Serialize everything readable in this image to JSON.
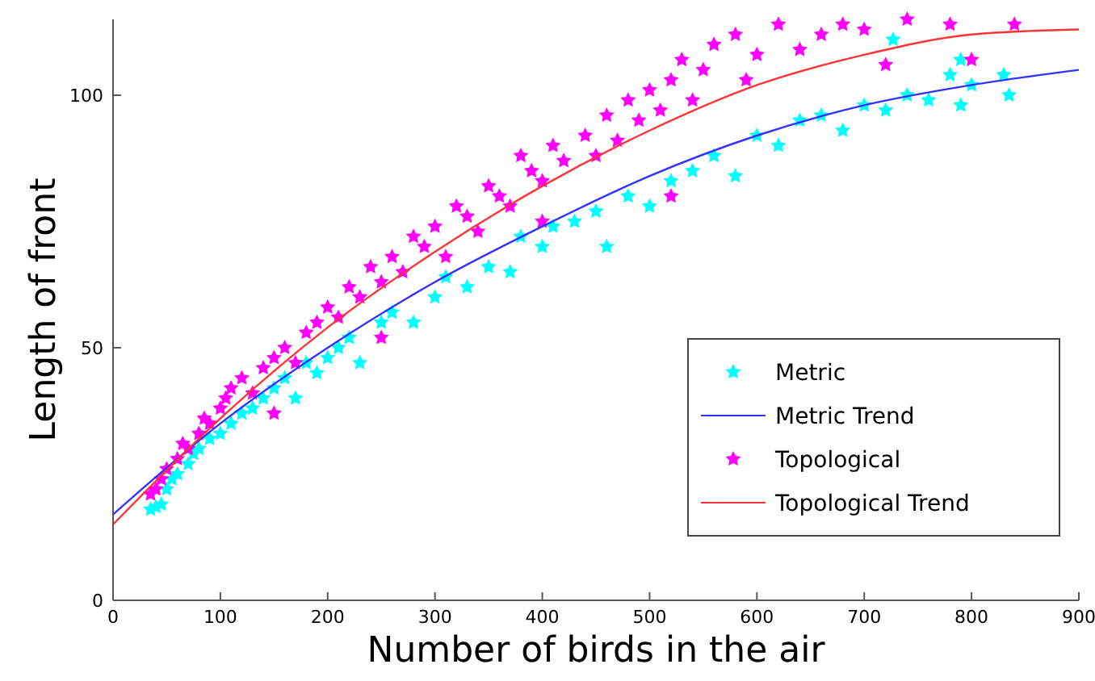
{
  "chart_data": {
    "type": "scatter",
    "xlabel": "Number of birds in the air",
    "ylabel": "Length of front",
    "xlim": [
      0,
      900
    ],
    "ylim": [
      0,
      115
    ],
    "xticks": [
      0,
      100,
      200,
      300,
      400,
      500,
      600,
      700,
      800,
      900
    ],
    "yticks": [
      0,
      50,
      100
    ],
    "grid": false,
    "legend": "bottom right",
    "series": [
      {
        "name": "Metric",
        "marker": "star",
        "color": "#00ffff",
        "x": [
          35,
          40,
          45,
          50,
          55,
          60,
          70,
          75,
          80,
          90,
          100,
          110,
          120,
          130,
          140,
          150,
          160,
          170,
          180,
          190,
          200,
          210,
          220,
          230,
          250,
          260,
          280,
          300,
          310,
          330,
          350,
          370,
          380,
          400,
          410,
          430,
          450,
          460,
          480,
          500,
          520,
          540,
          560,
          580,
          600,
          620,
          640,
          660,
          680,
          700,
          720,
          727,
          740,
          760,
          780,
          790,
          790,
          800,
          830,
          835
        ],
        "values": [
          18,
          18.5,
          19,
          22,
          24,
          25,
          27,
          29,
          30,
          32,
          33,
          35,
          37,
          38,
          40,
          42,
          44,
          40,
          47,
          45,
          48,
          50,
          52,
          47,
          55,
          57,
          55,
          60,
          64,
          62,
          66,
          65,
          72,
          70,
          74,
          75,
          77,
          70,
          80,
          78,
          83,
          85,
          88,
          84,
          92,
          90,
          95,
          96,
          93,
          98,
          97,
          111,
          100,
          99,
          104,
          98,
          107,
          102,
          104,
          100
        ]
      },
      {
        "name": "Metric Trend",
        "type": "line",
        "marker": "none",
        "color": "#3333ff",
        "x": [
          0,
          100,
          200,
          300,
          400,
          500,
          600,
          700,
          800,
          900
        ],
        "values": [
          17,
          35,
          50,
          63,
          74,
          84,
          92,
          98,
          102,
          105
        ]
      },
      {
        "name": "Topological",
        "marker": "star",
        "color": "#ff00ff",
        "x": [
          35,
          40,
          45,
          50,
          60,
          65,
          70,
          80,
          85,
          90,
          100,
          105,
          110,
          120,
          130,
          140,
          150,
          150,
          160,
          170,
          180,
          190,
          200,
          210,
          220,
          230,
          240,
          250,
          250,
          260,
          270,
          280,
          290,
          300,
          310,
          320,
          330,
          340,
          350,
          360,
          370,
          380,
          390,
          400,
          400,
          410,
          420,
          440,
          450,
          460,
          470,
          480,
          490,
          500,
          510,
          520,
          520,
          530,
          540,
          550,
          560,
          580,
          590,
          600,
          620,
          640,
          660,
          680,
          700,
          720,
          740,
          780,
          800,
          840
        ],
        "values": [
          21,
          22,
          24,
          26,
          28,
          31,
          30,
          33,
          36,
          35,
          38,
          40,
          42,
          44,
          41,
          46,
          48,
          37,
          50,
          47,
          53,
          55,
          58,
          56,
          62,
          60,
          66,
          63,
          52,
          68,
          65,
          72,
          70,
          74,
          68,
          78,
          76,
          73,
          82,
          80,
          78,
          88,
          85,
          83,
          75,
          90,
          87,
          92,
          88,
          96,
          91,
          99,
          95,
          101,
          97,
          103,
          80,
          107,
          99,
          105,
          110,
          112,
          103,
          108,
          114,
          109,
          112,
          114,
          113,
          106,
          115,
          114,
          107,
          114
        ]
      },
      {
        "name": "Topological Trend",
        "type": "line",
        "marker": "none",
        "color": "#ff3333",
        "x": [
          0,
          100,
          200,
          300,
          400,
          500,
          600,
          700,
          800,
          900
        ],
        "values": [
          15,
          36,
          54,
          69,
          82,
          93,
          102,
          108,
          112,
          113
        ]
      }
    ]
  }
}
